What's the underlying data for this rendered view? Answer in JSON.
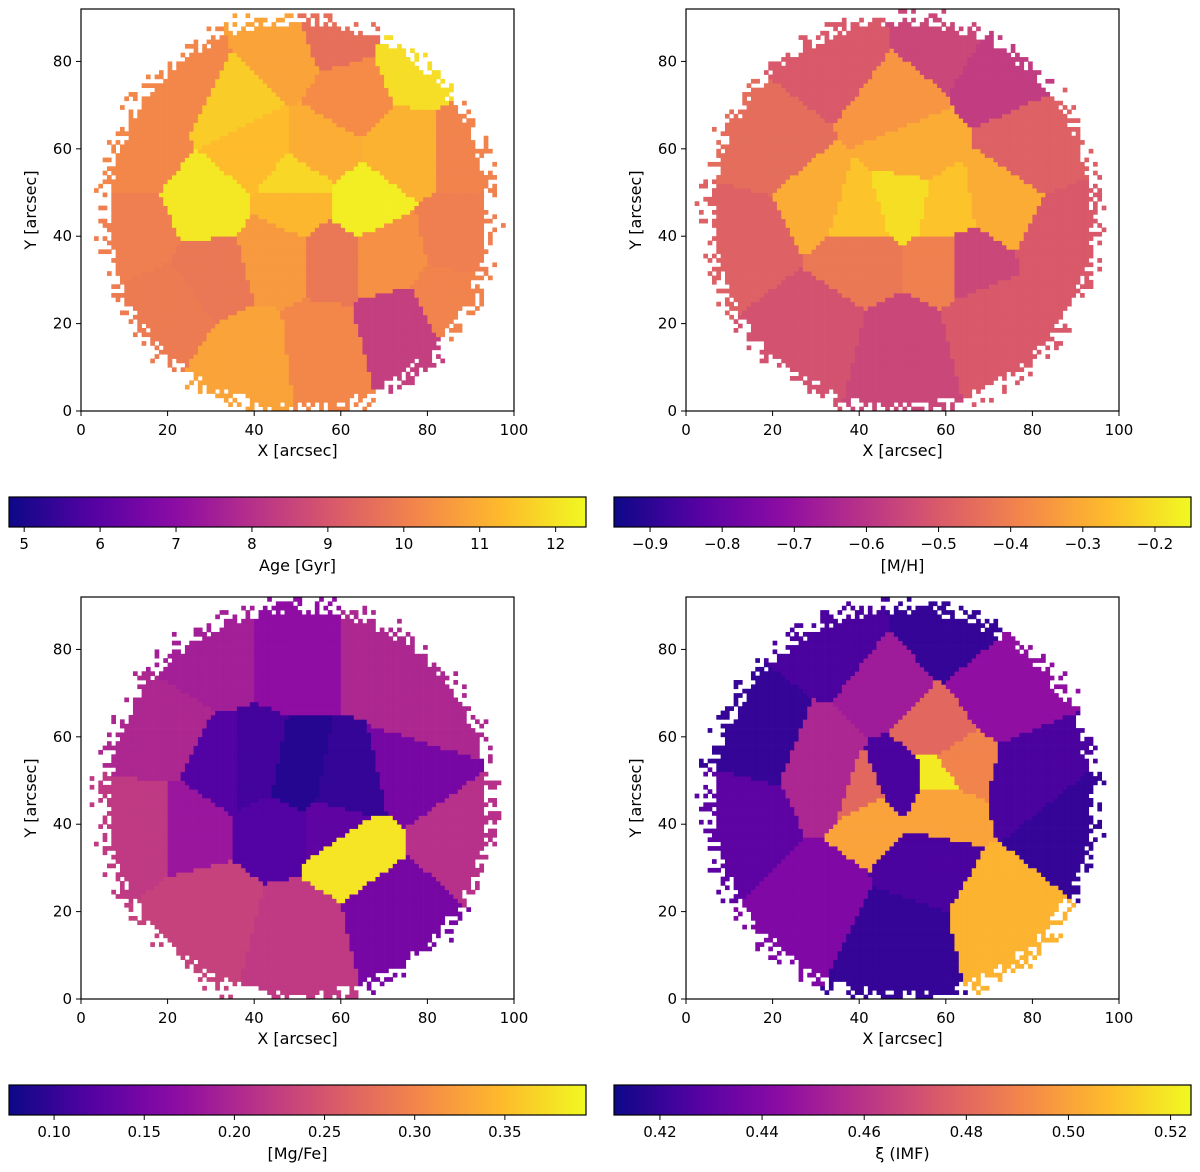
{
  "chart_data": [
    {
      "type": "heatmap",
      "title": "",
      "xlabel": "X [arcsec]",
      "ylabel": "Y [arcsec]",
      "xlim": [
        0,
        100
      ],
      "ylim": [
        0,
        92
      ],
      "xticks": [
        "0",
        "20",
        "40",
        "60",
        "80",
        "100"
      ],
      "yticks": [
        "0",
        "20",
        "40",
        "60",
        "80"
      ],
      "colormap": "plasma",
      "colorbar": {
        "label": "Age [Gyr]",
        "range": [
          4.8,
          12.4
        ],
        "ticks": [
          "5",
          "6",
          "7",
          "8",
          "9",
          "10",
          "11",
          "12"
        ],
        "tick_values": [
          5,
          6,
          7,
          8,
          9,
          10,
          11,
          12
        ]
      },
      "regions": [
        {
          "x": 50,
          "y": 47,
          "value": 11.2
        },
        {
          "x": 65,
          "y": 47,
          "value": 12.2
        },
        {
          "x": 29,
          "y": 47,
          "value": 12.1
        },
        {
          "x": 50,
          "y": 52,
          "value": 11.8
        },
        {
          "x": 40,
          "y": 60,
          "value": 11.3
        },
        {
          "x": 55,
          "y": 60,
          "value": 11.0
        },
        {
          "x": 78,
          "y": 79,
          "value": 11.9
        },
        {
          "x": 35,
          "y": 70,
          "value": 11.6
        },
        {
          "x": 47,
          "y": 82,
          "value": 10.8
        },
        {
          "x": 25,
          "y": 75,
          "value": 10.2
        },
        {
          "x": 58,
          "y": 86,
          "value": 9.6
        },
        {
          "x": 62,
          "y": 72,
          "value": 10.3
        },
        {
          "x": 75,
          "y": 60,
          "value": 11.1
        },
        {
          "x": 88,
          "y": 60,
          "value": 10.1
        },
        {
          "x": 13,
          "y": 60,
          "value": 10.2
        },
        {
          "x": 88,
          "y": 40,
          "value": 10.0
        },
        {
          "x": 13,
          "y": 40,
          "value": 10.0
        },
        {
          "x": 70,
          "y": 36,
          "value": 10.4
        },
        {
          "x": 30,
          "y": 32,
          "value": 9.8
        },
        {
          "x": 45,
          "y": 36,
          "value": 10.6
        },
        {
          "x": 58,
          "y": 36,
          "value": 9.8
        },
        {
          "x": 20,
          "y": 25,
          "value": 9.9
        },
        {
          "x": 40,
          "y": 12,
          "value": 10.8
        },
        {
          "x": 55,
          "y": 14,
          "value": 10.2
        },
        {
          "x": 74,
          "y": 19,
          "value": 8.4
        },
        {
          "x": 85,
          "y": 25,
          "value": 10.1
        }
      ]
    },
    {
      "type": "heatmap",
      "title": "",
      "xlabel": "X [arcsec]",
      "ylabel": "Y [arcsec]",
      "xlim": [
        0,
        100
      ],
      "ylim": [
        0,
        92
      ],
      "xticks": [
        "0",
        "20",
        "40",
        "60",
        "80",
        "100"
      ],
      "yticks": [
        "0",
        "20",
        "40",
        "60",
        "80"
      ],
      "colormap": "plasma",
      "colorbar": {
        "label": "[M/H]",
        "range": [
          -0.95,
          -0.15
        ],
        "ticks": [
          "−0.9",
          "−0.8",
          "−0.7",
          "−0.6",
          "−0.5",
          "−0.4",
          "−0.3",
          "−0.2"
        ],
        "tick_values": [
          -0.9,
          -0.8,
          -0.7,
          -0.6,
          -0.5,
          -0.4,
          -0.3,
          -0.2
        ]
      },
      "regions": [
        {
          "x": 50,
          "y": 48,
          "value": -0.2
        },
        {
          "x": 40,
          "y": 45,
          "value": -0.25
        },
        {
          "x": 60,
          "y": 46,
          "value": -0.25
        },
        {
          "x": 30,
          "y": 48,
          "value": -0.3
        },
        {
          "x": 72,
          "y": 48,
          "value": -0.3
        },
        {
          "x": 52,
          "y": 60,
          "value": -0.3
        },
        {
          "x": 48,
          "y": 70,
          "value": -0.35
        },
        {
          "x": 60,
          "y": 35,
          "value": -0.4
        },
        {
          "x": 64,
          "y": 35,
          "value": -0.55
        },
        {
          "x": 40,
          "y": 35,
          "value": -0.42
        },
        {
          "x": 20,
          "y": 60,
          "value": -0.45
        },
        {
          "x": 80,
          "y": 60,
          "value": -0.48
        },
        {
          "x": 15,
          "y": 40,
          "value": -0.48
        },
        {
          "x": 88,
          "y": 40,
          "value": -0.5
        },
        {
          "x": 30,
          "y": 20,
          "value": -0.52
        },
        {
          "x": 50,
          "y": 15,
          "value": -0.55
        },
        {
          "x": 70,
          "y": 20,
          "value": -0.5
        },
        {
          "x": 35,
          "y": 80,
          "value": -0.5
        },
        {
          "x": 72,
          "y": 78,
          "value": -0.58
        },
        {
          "x": 60,
          "y": 85,
          "value": -0.55
        }
      ]
    },
    {
      "type": "heatmap",
      "title": "",
      "xlabel": "X [arcsec]",
      "ylabel": "Y [arcsec]",
      "xlim": [
        0,
        100
      ],
      "ylim": [
        0,
        92
      ],
      "xticks": [
        "0",
        "20",
        "40",
        "60",
        "80",
        "100"
      ],
      "yticks": [
        "0",
        "20",
        "40",
        "60",
        "80"
      ],
      "colormap": "plasma",
      "colorbar": {
        "label": "[Mg/Fe]",
        "range": [
          0.075,
          0.395
        ],
        "ticks": [
          "0.10",
          "0.15",
          "0.20",
          "0.25",
          "0.30",
          "0.35"
        ],
        "tick_values": [
          0.1,
          0.15,
          0.2,
          0.25,
          0.3,
          0.35
        ]
      },
      "regions": [
        {
          "x": 50,
          "y": 50,
          "value": 0.09
        },
        {
          "x": 60,
          "y": 48,
          "value": 0.1
        },
        {
          "x": 40,
          "y": 52,
          "value": 0.11
        },
        {
          "x": 33,
          "y": 52,
          "value": 0.12
        },
        {
          "x": 45,
          "y": 40,
          "value": 0.12
        },
        {
          "x": 58,
          "y": 40,
          "value": 0.13
        },
        {
          "x": 62,
          "y": 34,
          "value": 0.38
        },
        {
          "x": 25,
          "y": 40,
          "value": 0.18
        },
        {
          "x": 78,
          "y": 52,
          "value": 0.15
        },
        {
          "x": 18,
          "y": 60,
          "value": 0.2
        },
        {
          "x": 82,
          "y": 65,
          "value": 0.2
        },
        {
          "x": 15,
          "y": 40,
          "value": 0.22
        },
        {
          "x": 88,
          "y": 38,
          "value": 0.21
        },
        {
          "x": 50,
          "y": 80,
          "value": 0.17
        },
        {
          "x": 30,
          "y": 80,
          "value": 0.19
        },
        {
          "x": 70,
          "y": 80,
          "value": 0.2
        },
        {
          "x": 30,
          "y": 20,
          "value": 0.23
        },
        {
          "x": 50,
          "y": 15,
          "value": 0.22
        },
        {
          "x": 72,
          "y": 20,
          "value": 0.15
        }
      ]
    },
    {
      "type": "heatmap",
      "title": "",
      "xlabel": "X [arcsec]",
      "ylabel": "Y [arcsec]",
      "xlim": [
        0,
        100
      ],
      "ylim": [
        0,
        92
      ],
      "xticks": [
        "0",
        "20",
        "40",
        "60",
        "80",
        "100"
      ],
      "yticks": [
        "0",
        "20",
        "40",
        "60",
        "80"
      ],
      "colormap": "plasma",
      "colorbar": {
        "label": "ξ (IMF)",
        "range": [
          0.411,
          0.524
        ],
        "ticks": [
          "0.42",
          "0.44",
          "0.46",
          "0.48",
          "0.50",
          "0.52"
        ],
        "tick_values": [
          0.42,
          0.44,
          0.46,
          0.48,
          0.5,
          0.52
        ]
      },
      "regions": [
        {
          "x": 50,
          "y": 50,
          "value": 0.425
        },
        {
          "x": 58,
          "y": 51,
          "value": 0.52
        },
        {
          "x": 62,
          "y": 54,
          "value": 0.49
        },
        {
          "x": 58,
          "y": 45,
          "value": 0.5
        },
        {
          "x": 58,
          "y": 60,
          "value": 0.48
        },
        {
          "x": 42,
          "y": 42,
          "value": 0.5
        },
        {
          "x": 40,
          "y": 46,
          "value": 0.48
        },
        {
          "x": 34,
          "y": 48,
          "value": 0.455
        },
        {
          "x": 30,
          "y": 56,
          "value": 0.455
        },
        {
          "x": 45,
          "y": 72,
          "value": 0.45
        },
        {
          "x": 72,
          "y": 70,
          "value": 0.445
        },
        {
          "x": 72,
          "y": 20,
          "value": 0.505
        },
        {
          "x": 20,
          "y": 60,
          "value": 0.42
        },
        {
          "x": 80,
          "y": 50,
          "value": 0.425
        },
        {
          "x": 15,
          "y": 40,
          "value": 0.43
        },
        {
          "x": 88,
          "y": 40,
          "value": 0.42
        },
        {
          "x": 30,
          "y": 25,
          "value": 0.44
        },
        {
          "x": 50,
          "y": 15,
          "value": 0.42
        },
        {
          "x": 55,
          "y": 30,
          "value": 0.425
        },
        {
          "x": 35,
          "y": 80,
          "value": 0.425
        },
        {
          "x": 60,
          "y": 85,
          "value": 0.42
        }
      ]
    }
  ]
}
